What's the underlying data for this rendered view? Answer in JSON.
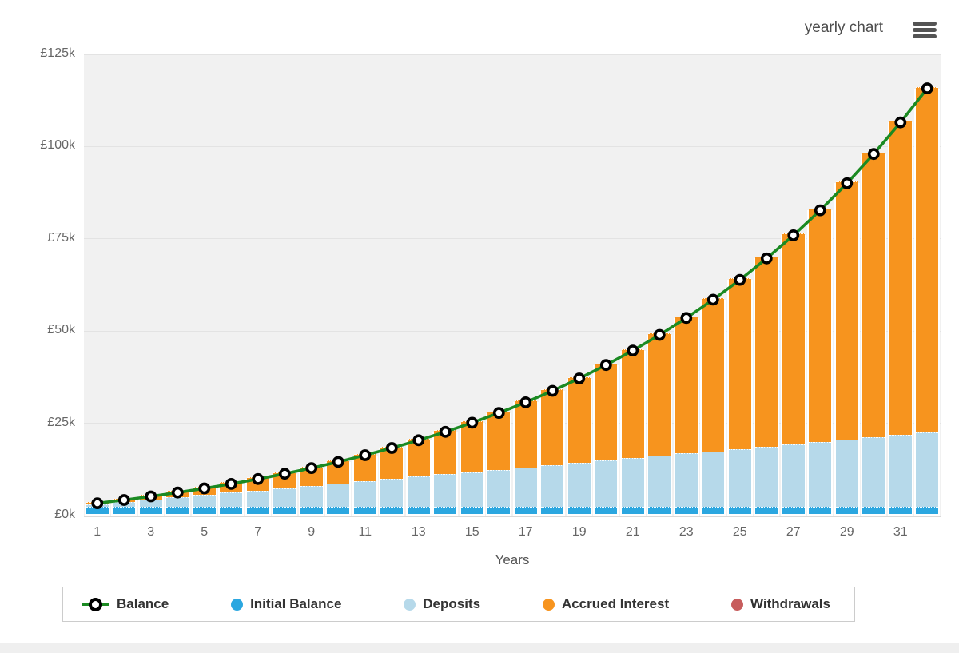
{
  "header": {
    "title": "yearly chart",
    "menu_icon": "hamburger-icon"
  },
  "colors": {
    "balance_line": "#1b8a22",
    "marker_fill": "#ffffff",
    "marker_stroke": "#000000",
    "initial_balance": "#2ba7e0",
    "deposits": "#b6d9ea",
    "accrued_interest": "#f7941e",
    "withdrawals": "#c75d5d",
    "plot_background": "#f1f1f1",
    "gridline": "#e3e3e3",
    "axis_text": "#666666",
    "legend_text": "#333333"
  },
  "chart_data": {
    "type": "bar",
    "subtype": "stacked-columns-with-line-overlay",
    "title": "yearly chart",
    "xlabel": "Years",
    "ylabel": "",
    "ylim": [
      0,
      125000
    ],
    "grid": true,
    "legend_position": "bottom",
    "x": [
      1,
      2,
      3,
      4,
      5,
      6,
      7,
      8,
      9,
      10,
      11,
      12,
      13,
      14,
      15,
      16,
      17,
      18,
      19,
      20,
      21,
      22,
      23,
      24,
      25,
      26,
      27,
      28,
      29,
      30,
      31,
      32
    ],
    "x_tick_labels": [
      "1",
      "3",
      "5",
      "7",
      "9",
      "11",
      "13",
      "15",
      "17",
      "19",
      "21",
      "23",
      "25",
      "27",
      "29",
      "31"
    ],
    "y_ticks": [
      {
        "label": "£0k",
        "value": 0
      },
      {
        "label": "£25k",
        "value": 25000
      },
      {
        "label": "£50k",
        "value": 50000
      },
      {
        "label": "£75k",
        "value": 75000
      },
      {
        "label": "£100k",
        "value": 100000
      },
      {
        "label": "£125k",
        "value": 125000
      }
    ],
    "series": [
      {
        "name": "Balance",
        "type": "line",
        "color": "#1b8a22",
        "marker": "circle-black-ring-white-fill",
        "values": [
          3328,
          4222,
          5189,
          6234,
          7364,
          8586,
          9906,
          11334,
          12877,
          14545,
          16348,
          18297,
          20404,
          22682,
          25144,
          27806,
          30683,
          33793,
          37155,
          40790,
          44719,
          48966,
          53557,
          58521,
          63886,
          69685,
          75955,
          82732,
          90059,
          97978,
          106539,
          115794
        ]
      },
      {
        "name": "Initial Balance",
        "type": "bar",
        "color": "#2ba7e0",
        "values": [
          2000,
          2000,
          2000,
          2000,
          2000,
          2000,
          2000,
          2000,
          2000,
          2000,
          2000,
          2000,
          2000,
          2000,
          2000,
          2000,
          2000,
          2000,
          2000,
          2000,
          2000,
          2000,
          2000,
          2000,
          2000,
          2000,
          2000,
          2000,
          2000,
          2000,
          2000,
          2000
        ]
      },
      {
        "name": "Deposits",
        "type": "bar",
        "color": "#b6d9ea",
        "values": [
          625,
          1250,
          1875,
          2500,
          3125,
          3750,
          4375,
          5000,
          5625,
          6250,
          6875,
          7500,
          8125,
          8750,
          9375,
          10000,
          10625,
          11250,
          11875,
          12500,
          13125,
          13750,
          14375,
          15000,
          15625,
          16250,
          16875,
          17500,
          18125,
          18750,
          19375,
          20000
        ]
      },
      {
        "name": "Accrued Interest",
        "type": "bar",
        "color": "#f7941e",
        "values": [
          703,
          972,
          1314,
          1734,
          2239,
          2836,
          3531,
          4334,
          5252,
          6295,
          7473,
          8797,
          10279,
          11932,
          13769,
          15806,
          18058,
          20543,
          23280,
          26290,
          29594,
          33216,
          37182,
          41521,
          46261,
          51435,
          57080,
          63232,
          69934,
          77228,
          85164,
          93794
        ]
      },
      {
        "name": "Withdrawals",
        "type": "bar",
        "color": "#c75d5d",
        "values": [
          0,
          0,
          0,
          0,
          0,
          0,
          0,
          0,
          0,
          0,
          0,
          0,
          0,
          0,
          0,
          0,
          0,
          0,
          0,
          0,
          0,
          0,
          0,
          0,
          0,
          0,
          0,
          0,
          0,
          0,
          0,
          0
        ]
      }
    ],
    "legend": [
      "Balance",
      "Initial Balance",
      "Deposits",
      "Accrued Interest",
      "Withdrawals"
    ]
  }
}
